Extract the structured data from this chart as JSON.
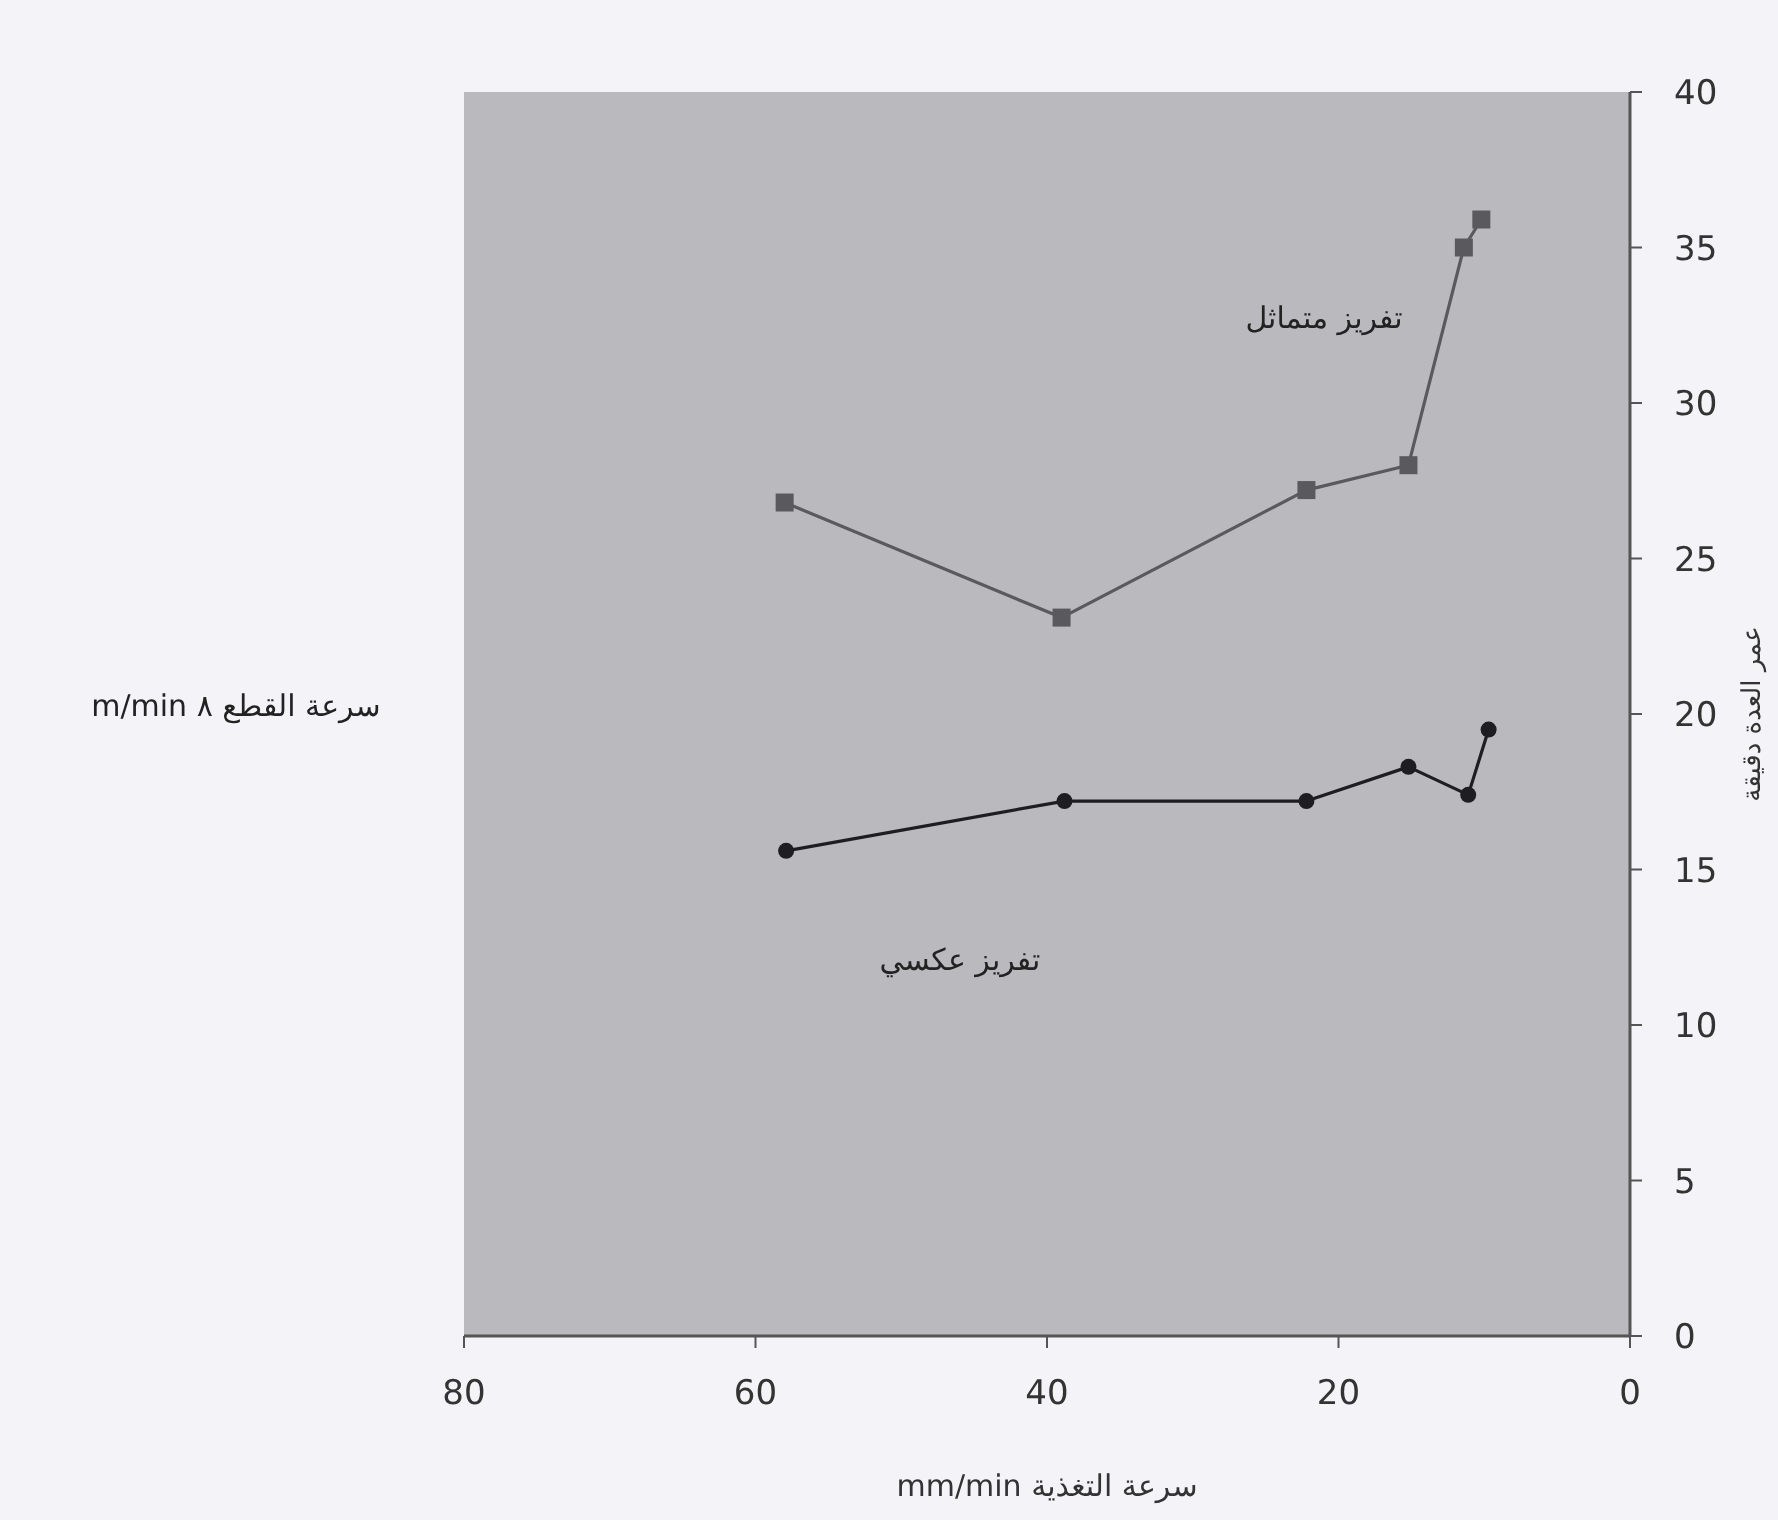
{
  "chart_data": {
    "type": "line",
    "xlabel": "سرعة التغذية mm/min",
    "ylabel": "عمر العدة دقيقة",
    "xlim": [
      80,
      0
    ],
    "ylim": [
      0,
      40
    ],
    "xticks": [
      80,
      60,
      40,
      20,
      0
    ],
    "yticks": [
      0,
      5,
      10,
      15,
      20,
      25,
      30,
      35,
      40
    ],
    "annotations": [
      "تفريز متماثل",
      "تفريز عكسي",
      "سرعة القطع ٨ m/min"
    ],
    "series": [
      {
        "color": "#5a5a5e",
        "marker": "square",
        "x": [
          58.0,
          39.0,
          22.2,
          15.2,
          11.4,
          10.2
        ],
        "values": [
          26.8,
          23.1,
          27.2,
          28.0,
          35.0,
          35.9
        ]
      },
      {
        "color": "#1e1e22",
        "marker": "circle",
        "x": [
          57.9,
          38.8,
          22.2,
          15.2,
          11.1,
          9.7
        ],
        "values": [
          15.6,
          17.2,
          17.2,
          18.3,
          17.4,
          19.5
        ]
      }
    ]
  }
}
